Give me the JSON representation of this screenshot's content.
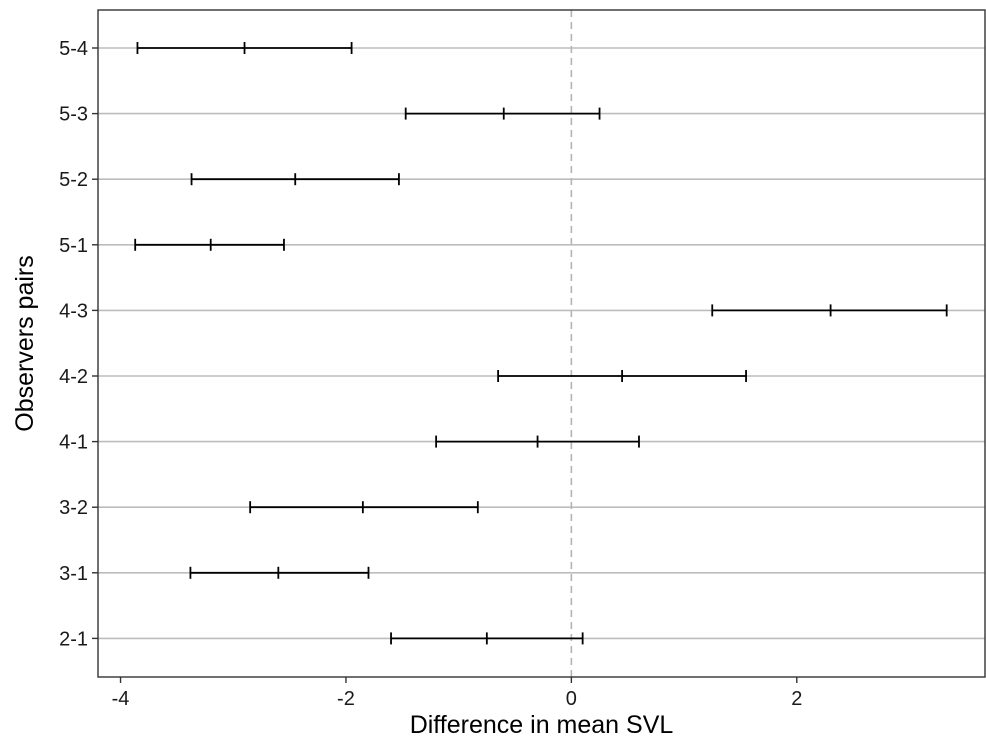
{
  "chart_data": {
    "type": "errorbar",
    "xlabel": "Difference in mean SVL",
    "ylabel": "Observers pairs",
    "xlim": [
      -4.2,
      3.67
    ],
    "xticks": [
      -4,
      -2,
      0,
      2
    ],
    "x_tick_labels": [
      "-4",
      "-2",
      "0",
      "2"
    ],
    "reference_line": 0,
    "grid": "horizontal major lines only",
    "categories": [
      "5-4",
      "5-3",
      "5-2",
      "5-1",
      "4-3",
      "4-2",
      "4-1",
      "3-2",
      "3-1",
      "2-1"
    ],
    "series": [
      {
        "estimate": [
          -2.9,
          -0.6,
          -2.45,
          -3.2,
          2.3,
          0.45,
          -0.3,
          -1.85,
          -2.6,
          -0.75
        ],
        "lower": [
          -3.85,
          -1.47,
          -3.37,
          -3.87,
          1.25,
          -0.65,
          -1.2,
          -2.85,
          -3.38,
          -1.6
        ],
        "upper": [
          -1.95,
          0.25,
          -1.53,
          -2.55,
          3.33,
          1.55,
          0.6,
          -0.83,
          -1.8,
          0.1
        ]
      }
    ],
    "colors": {
      "bars": "#000000",
      "grid": "#bdbdbd",
      "reference": "#b5b5b5",
      "frame": "#333333"
    }
  }
}
